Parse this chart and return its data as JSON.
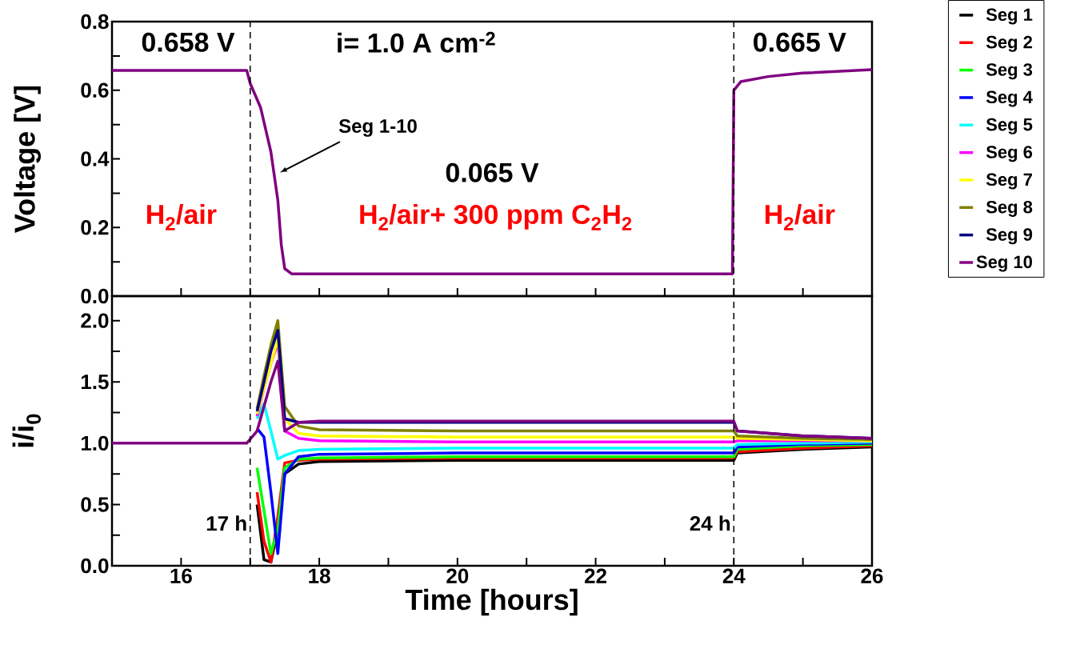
{
  "chart_data": [
    {
      "type": "line",
      "ylabel": "Voltage [V]",
      "xlim": [
        15,
        26
      ],
      "ylim": [
        0,
        0.8
      ],
      "tick_labels": "y",
      "xticks": [
        {
          "value": 15,
          "label": null
        },
        16,
        {
          "value": 17,
          "label": null
        },
        18,
        {
          "value": 19,
          "label": null
        },
        20,
        {
          "value": 21,
          "label": null
        },
        22,
        {
          "value": 23,
          "label": null
        },
        24,
        {
          "value": 25,
          "label": null
        },
        26
      ],
      "yticks": [
        {
          "value": 0,
          "label": "0.0"
        },
        {
          "value": 0.1,
          "label": null
        },
        {
          "value": 0.2,
          "label": "0.2"
        },
        {
          "value": 0.3,
          "label": null
        },
        {
          "value": 0.4,
          "label": "0.4"
        },
        {
          "value": 0.5,
          "label": null
        },
        {
          "value": 0.6,
          "label": "0.6"
        },
        {
          "value": 0.7,
          "label": null
        },
        {
          "value": 0.8,
          "label": "0.8"
        }
      ],
      "x": [
        15,
        16.95,
        17.0,
        17.15,
        17.3,
        17.4,
        17.45,
        17.5,
        17.6,
        20,
        23.98,
        24.0,
        24.1,
        24.5,
        25,
        26
      ],
      "series": [
        {
          "color": "#800080",
          "values": [
            0.658,
            0.658,
            0.62,
            0.55,
            0.42,
            0.28,
            0.15,
            0.08,
            0.065,
            0.065,
            0.065,
            0.6,
            0.625,
            0.64,
            0.65,
            0.66
          ]
        }
      ],
      "ref_lines": [
        {
          "axis": "x",
          "value": 17,
          "line_style": "dashed"
        },
        {
          "axis": "x",
          "value": 24,
          "line_style": "dashed"
        }
      ],
      "annotations": [
        "0.658 V",
        "i= 1.0 A cm$^{-2}$",
        "0.065 V",
        "0.665 V",
        "H$_{2}$/air",
        "H$_{2}$/air+ 300 ppm C$_{2}$H$_{2}$",
        "H$_{2}$/air",
        "Seg 1-10"
      ]
    },
    {
      "type": "line",
      "xlabel": "Time [hours]",
      "ylabel": "i/i$_{0}$",
      "xlim": [
        15,
        26
      ],
      "ylim": [
        0,
        2.2
      ],
      "legend": "right",
      "xticks": [
        {
          "value": 15,
          "label": null
        },
        16,
        {
          "value": 17,
          "label": null
        },
        18,
        {
          "value": 19,
          "label": null
        },
        20,
        {
          "value": 21,
          "label": null
        },
        22,
        {
          "value": 23,
          "label": null
        },
        24,
        {
          "value": 25,
          "label": null
        },
        26
      ],
      "yticks": [
        {
          "value": 0,
          "label": "0.0"
        },
        {
          "value": 0.25,
          "label": null
        },
        {
          "value": 0.5,
          "label": "0.5"
        },
        {
          "value": 0.75,
          "label": null
        },
        {
          "value": 1.0,
          "label": "1.0"
        },
        {
          "value": 1.25,
          "label": null
        },
        {
          "value": 1.5,
          "label": "1.5"
        },
        {
          "value": 1.75,
          "label": null
        },
        {
          "value": 2.0,
          "label": "2.0"
        }
      ],
      "x": [
        15,
        16.95,
        17.1,
        17.2,
        17.3,
        17.4,
        17.5,
        17.7,
        18,
        20,
        24,
        24.05,
        25,
        26
      ],
      "series": [
        {
          "name": "Seg 1",
          "color": "#000000",
          "values": [
            null,
            null,
            0.5,
            0.05,
            0.03,
            0.3,
            0.75,
            0.83,
            0.85,
            0.86,
            0.86,
            0.92,
            0.95,
            0.97
          ]
        },
        {
          "name": "Seg 2",
          "color": "#ff0000",
          "values": [
            null,
            null,
            0.6,
            0.2,
            0.03,
            0.4,
            0.84,
            0.86,
            0.87,
            0.88,
            0.88,
            0.93,
            0.96,
            0.98
          ]
        },
        {
          "name": "Seg 3",
          "color": "#00ff00",
          "values": [
            null,
            null,
            0.8,
            0.45,
            0.1,
            0.3,
            0.8,
            0.87,
            0.88,
            0.89,
            0.89,
            0.95,
            0.98,
            0.99
          ]
        },
        {
          "name": "Seg 4",
          "color": "#0000ff",
          "values": [
            null,
            null,
            1.12,
            1.05,
            0.6,
            0.1,
            0.75,
            0.89,
            0.91,
            0.92,
            0.92,
            0.97,
            0.99,
            1.0
          ]
        },
        {
          "name": "Seg 5",
          "color": "#00ffff",
          "values": [
            null,
            null,
            1.2,
            1.32,
            1.1,
            0.87,
            0.9,
            0.94,
            0.95,
            0.96,
            0.96,
            0.99,
            1.0,
            1.01
          ]
        },
        {
          "name": "Seg 6",
          "color": "#ff00ff",
          "values": [
            null,
            null,
            1.22,
            1.45,
            1.65,
            1.82,
            1.1,
            1.04,
            1.02,
            1.01,
            1.01,
            1.02,
            1.02,
            1.02
          ]
        },
        {
          "name": "Seg 7",
          "color": "#ffff00",
          "values": [
            null,
            null,
            1.24,
            1.45,
            1.65,
            1.85,
            1.2,
            1.08,
            1.06,
            1.05,
            1.05,
            1.04,
            1.03,
            1.02
          ]
        },
        {
          "name": "Seg 8",
          "color": "#808000",
          "values": [
            null,
            null,
            1.28,
            1.55,
            1.8,
            2.0,
            1.3,
            1.14,
            1.11,
            1.1,
            1.1,
            1.06,
            1.04,
            1.03
          ]
        },
        {
          "name": "Seg 9",
          "color": "#000080",
          "values": [
            null,
            null,
            1.26,
            1.5,
            1.75,
            1.92,
            1.2,
            1.17,
            1.17,
            1.17,
            1.17,
            1.1,
            1.06,
            1.04
          ]
        },
        {
          "name": "Seg 10",
          "color": "#800080",
          "values": [
            1.0,
            1.0,
            1.1,
            1.3,
            1.5,
            1.67,
            1.1,
            1.17,
            1.18,
            1.18,
            1.18,
            1.1,
            1.06,
            1.04
          ]
        }
      ],
      "ref_lines": [
        {
          "axis": "x",
          "value": 17,
          "label": "17 h",
          "line_style": "dashed"
        },
        {
          "axis": "x",
          "value": 24,
          "label": "24 h",
          "line_style": "dashed"
        }
      ]
    }
  ]
}
